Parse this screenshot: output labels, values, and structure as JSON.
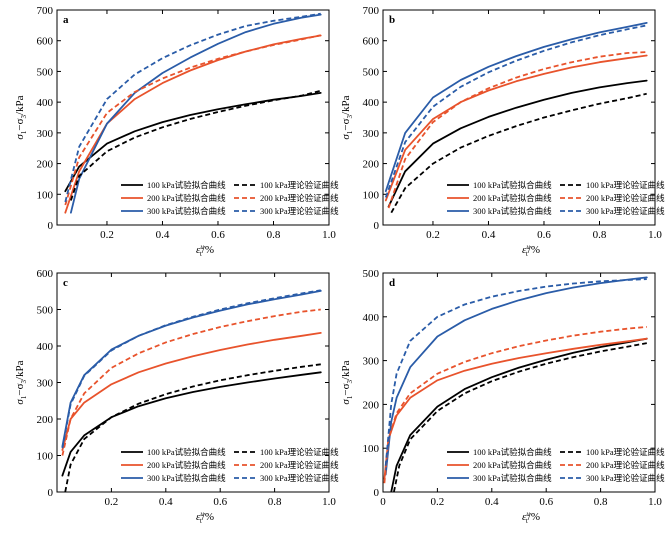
{
  "chart_data": [
    {
      "type": "line",
      "panel_label": "a",
      "xlabel": "εₜᵘ/%",
      "ylabel": "σ₁−σ₃/kPa",
      "xlim": [
        0.02,
        1.0
      ],
      "ylim": [
        0,
        700
      ],
      "xticks": [
        "0.2",
        "0.4",
        "0.6",
        "0.8",
        "1.0"
      ],
      "yticks": [
        "0",
        "100",
        "200",
        "300",
        "400",
        "500",
        "600",
        "700"
      ],
      "legend": "bottom-right",
      "series": [
        {
          "name": "100 kPa试验拟合曲线",
          "color": "#000000",
          "dash": "solid",
          "x": [
            0.05,
            0.1,
            0.2,
            0.3,
            0.4,
            0.5,
            0.6,
            0.7,
            0.8,
            0.9,
            0.97
          ],
          "y": [
            110,
            190,
            265,
            305,
            335,
            358,
            377,
            393,
            408,
            420,
            430
          ]
        },
        {
          "name": "200 kPa试验拟合曲线",
          "color": "#e8532c",
          "dash": "solid",
          "x": [
            0.05,
            0.1,
            0.2,
            0.3,
            0.4,
            0.5,
            0.6,
            0.7,
            0.8,
            0.9,
            0.97
          ],
          "y": [
            40,
            175,
            330,
            410,
            462,
            503,
            537,
            565,
            588,
            606,
            617
          ]
        },
        {
          "name": "300 kPa试验拟合曲线",
          "color": "#2a5ca8",
          "dash": "solid",
          "x": [
            0.07,
            0.1,
            0.2,
            0.3,
            0.4,
            0.5,
            0.6,
            0.7,
            0.8,
            0.9,
            0.97
          ],
          "y": [
            40,
            150,
            330,
            430,
            495,
            545,
            590,
            628,
            655,
            675,
            685
          ]
        },
        {
          "name": "100 kPa理论验证曲线",
          "color": "#000000",
          "dash": "dashed",
          "x": [
            0.07,
            0.1,
            0.2,
            0.3,
            0.4,
            0.5,
            0.6,
            0.7,
            0.8,
            0.9,
            0.97
          ],
          "y": [
            80,
            160,
            240,
            285,
            318,
            345,
            368,
            388,
            406,
            421,
            437
          ]
        },
        {
          "name": "200 kPa理论验证曲线",
          "color": "#e8532c",
          "dash": "dashed",
          "x": [
            0.05,
            0.1,
            0.2,
            0.3,
            0.4,
            0.5,
            0.6,
            0.7,
            0.8,
            0.9,
            0.97
          ],
          "y": [
            65,
            220,
            365,
            433,
            477,
            512,
            541,
            565,
            586,
            604,
            618
          ]
        },
        {
          "name": "300 kPa理论验证曲线",
          "color": "#2a5ca8",
          "dash": "dashed",
          "x": [
            0.05,
            0.1,
            0.2,
            0.3,
            0.4,
            0.5,
            0.6,
            0.7,
            0.8,
            0.9,
            0.97
          ],
          "y": [
            75,
            255,
            410,
            490,
            543,
            585,
            620,
            648,
            665,
            678,
            688
          ]
        }
      ]
    },
    {
      "type": "line",
      "panel_label": "b",
      "xlabel": "εₜᵘ/%",
      "ylabel": "σ₁−σ₃/kPa",
      "xlim": [
        0.02,
        1.0
      ],
      "ylim": [
        0,
        700
      ],
      "xticks": [
        "0.2",
        "0.4",
        "0.6",
        "0.8",
        "1.0"
      ],
      "yticks": [
        "0",
        "100",
        "200",
        "300",
        "400",
        "500",
        "600",
        "700"
      ],
      "legend": "bottom-right",
      "series": [
        {
          "name": "100 kPa试验拟合曲线",
          "color": "#000000",
          "dash": "solid",
          "x": [
            0.04,
            0.1,
            0.2,
            0.3,
            0.4,
            0.5,
            0.6,
            0.7,
            0.8,
            0.9,
            0.97
          ],
          "y": [
            60,
            175,
            265,
            315,
            352,
            382,
            408,
            430,
            448,
            462,
            470
          ]
        },
        {
          "name": "200 kPa试验拟合曲线",
          "color": "#e8532c",
          "dash": "solid",
          "x": [
            0.03,
            0.1,
            0.2,
            0.3,
            0.4,
            0.5,
            0.6,
            0.7,
            0.8,
            0.9,
            0.97
          ],
          "y": [
            80,
            245,
            345,
            400,
            438,
            468,
            492,
            513,
            530,
            543,
            552
          ]
        },
        {
          "name": "300 kPa试验拟合曲线",
          "color": "#2a5ca8",
          "dash": "solid",
          "x": [
            0.03,
            0.1,
            0.2,
            0.3,
            0.4,
            0.5,
            0.6,
            0.7,
            0.8,
            0.9,
            0.97
          ],
          "y": [
            110,
            300,
            415,
            472,
            515,
            550,
            580,
            605,
            627,
            645,
            658
          ]
        },
        {
          "name": "100 kPa理论验证曲线",
          "color": "#000000",
          "dash": "dashed",
          "x": [
            0.05,
            0.1,
            0.2,
            0.3,
            0.4,
            0.5,
            0.6,
            0.7,
            0.8,
            0.9,
            0.97
          ],
          "y": [
            40,
            120,
            200,
            252,
            290,
            322,
            350,
            373,
            395,
            413,
            427
          ]
        },
        {
          "name": "200 kPa理论验证曲线",
          "color": "#e8532c",
          "dash": "dashed",
          "x": [
            0.04,
            0.1,
            0.2,
            0.3,
            0.4,
            0.5,
            0.6,
            0.7,
            0.8,
            0.9,
            0.97
          ],
          "y": [
            55,
            215,
            335,
            400,
            445,
            480,
            508,
            530,
            548,
            560,
            563
          ]
        },
        {
          "name": "300 kPa理论验证曲线",
          "color": "#2a5ca8",
          "dash": "dashed",
          "x": [
            0.03,
            0.1,
            0.2,
            0.3,
            0.4,
            0.5,
            0.6,
            0.7,
            0.8,
            0.9,
            0.97
          ],
          "y": [
            90,
            270,
            385,
            450,
            497,
            535,
            567,
            595,
            618,
            637,
            650
          ]
        }
      ]
    },
    {
      "type": "line",
      "panel_label": "c",
      "xlabel": "εₜᵘ/%",
      "ylabel": "σ₁−σ₃/kPa",
      "xlim": [
        0.0,
        1.0
      ],
      "ylim": [
        0,
        600
      ],
      "xticks": [
        "0.2",
        "0.4",
        "0.6",
        "0.8",
        "1.0"
      ],
      "yticks": [
        "0",
        "100",
        "200",
        "300",
        "400",
        "500",
        "600"
      ],
      "legend": "bottom-right",
      "series": [
        {
          "name": "100 kPa试验拟合曲线",
          "color": "#000000",
          "dash": "solid",
          "x": [
            0.02,
            0.05,
            0.1,
            0.2,
            0.3,
            0.4,
            0.5,
            0.6,
            0.7,
            0.8,
            0.9,
            0.97
          ],
          "y": [
            45,
            110,
            155,
            205,
            235,
            257,
            274,
            288,
            300,
            311,
            321,
            328
          ]
        },
        {
          "name": "200 kPa试验拟合曲线",
          "color": "#e8532c",
          "dash": "solid",
          "x": [
            0.02,
            0.05,
            0.1,
            0.2,
            0.3,
            0.4,
            0.5,
            0.6,
            0.7,
            0.8,
            0.9,
            0.97
          ],
          "y": [
            115,
            200,
            245,
            295,
            328,
            352,
            372,
            389,
            404,
            417,
            428,
            436
          ]
        },
        {
          "name": "300 kPa试验拟合曲线",
          "color": "#2a5ca8",
          "dash": "solid",
          "x": [
            0.02,
            0.05,
            0.1,
            0.2,
            0.3,
            0.4,
            0.5,
            0.6,
            0.7,
            0.8,
            0.9,
            0.97
          ],
          "y": [
            125,
            245,
            320,
            390,
            428,
            456,
            478,
            497,
            514,
            528,
            541,
            551
          ]
        },
        {
          "name": "100 kPa理论验证曲线",
          "color": "#000000",
          "dash": "dashed",
          "x": [
            0.03,
            0.05,
            0.1,
            0.2,
            0.3,
            0.4,
            0.5,
            0.6,
            0.7,
            0.8,
            0.9,
            0.97
          ],
          "y": [
            0,
            75,
            145,
            205,
            242,
            268,
            289,
            306,
            320,
            332,
            343,
            350
          ]
        },
        {
          "name": "200 kPa理论验证曲线",
          "color": "#e8532c",
          "dash": "dashed",
          "x": [
            0.02,
            0.05,
            0.1,
            0.2,
            0.3,
            0.4,
            0.5,
            0.6,
            0.7,
            0.8,
            0.9,
            0.97
          ],
          "y": [
            100,
            200,
            270,
            340,
            380,
            410,
            433,
            452,
            468,
            482,
            494,
            500
          ]
        },
        {
          "name": "300 kPa理论验证曲线",
          "color": "#2a5ca8",
          "dash": "dashed",
          "x": [
            0.02,
            0.05,
            0.1,
            0.2,
            0.3,
            0.4,
            0.5,
            0.6,
            0.7,
            0.8,
            0.9,
            0.97
          ],
          "y": [
            120,
            240,
            318,
            388,
            428,
            457,
            480,
            500,
            517,
            531,
            544,
            553
          ]
        }
      ]
    },
    {
      "type": "line",
      "panel_label": "d",
      "xlabel": "εₜᵘ/%",
      "ylabel": "σ₁−σ₃/kPa",
      "xlim": [
        0.0,
        1.0
      ],
      "ylim": [
        0,
        500
      ],
      "xticks": [
        "0",
        "0.2",
        "0.4",
        "0.6",
        "0.8",
        "1.0"
      ],
      "yticks": [
        "0",
        "100",
        "200",
        "300",
        "400",
        "500"
      ],
      "legend": "bottom-right",
      "series": [
        {
          "name": "100 kPa试验拟合曲线",
          "color": "#000000",
          "dash": "solid",
          "x": [
            0.03,
            0.05,
            0.1,
            0.2,
            0.3,
            0.4,
            0.5,
            0.6,
            0.7,
            0.8,
            0.9,
            0.97
          ],
          "y": [
            0,
            60,
            130,
            195,
            235,
            262,
            284,
            302,
            318,
            331,
            342,
            350
          ]
        },
        {
          "name": "200 kPa试验拟合曲线",
          "color": "#e8532c",
          "dash": "solid",
          "x": [
            0.005,
            0.02,
            0.05,
            0.1,
            0.2,
            0.3,
            0.4,
            0.5,
            0.6,
            0.7,
            0.8,
            0.9,
            0.97
          ],
          "y": [
            30,
            120,
            175,
            215,
            255,
            277,
            293,
            306,
            317,
            327,
            336,
            344,
            350
          ]
        },
        {
          "name": "300 kPa试验拟合曲线",
          "color": "#2a5ca8",
          "dash": "solid",
          "x": [
            0.01,
            0.03,
            0.05,
            0.1,
            0.2,
            0.3,
            0.4,
            0.5,
            0.6,
            0.7,
            0.8,
            0.9,
            0.97
          ],
          "y": [
            40,
            160,
            215,
            285,
            355,
            392,
            418,
            438,
            454,
            467,
            477,
            485,
            490
          ]
        },
        {
          "name": "100 kPa理论验证曲线",
          "color": "#000000",
          "dash": "dashed",
          "x": [
            0.04,
            0.06,
            0.1,
            0.2,
            0.3,
            0.4,
            0.5,
            0.6,
            0.7,
            0.8,
            0.9,
            0.97
          ],
          "y": [
            0,
            60,
            120,
            185,
            225,
            253,
            275,
            293,
            308,
            321,
            332,
            340
          ]
        },
        {
          "name": "200 kPa理论验证曲线",
          "color": "#e8532c",
          "dash": "dashed",
          "x": [
            0.005,
            0.02,
            0.05,
            0.1,
            0.2,
            0.3,
            0.4,
            0.5,
            0.6,
            0.7,
            0.8,
            0.9,
            0.97
          ],
          "y": [
            20,
            120,
            180,
            225,
            270,
            297,
            317,
            333,
            346,
            357,
            366,
            373,
            377
          ]
        },
        {
          "name": "300 kPa理论验证曲线",
          "color": "#2a5ca8",
          "dash": "dashed",
          "x": [
            0.01,
            0.03,
            0.05,
            0.1,
            0.2,
            0.3,
            0.4,
            0.5,
            0.6,
            0.7,
            0.8,
            0.9,
            0.97
          ],
          "y": [
            60,
            200,
            270,
            345,
            400,
            428,
            446,
            459,
            469,
            476,
            481,
            484,
            486
          ]
        }
      ]
    }
  ]
}
